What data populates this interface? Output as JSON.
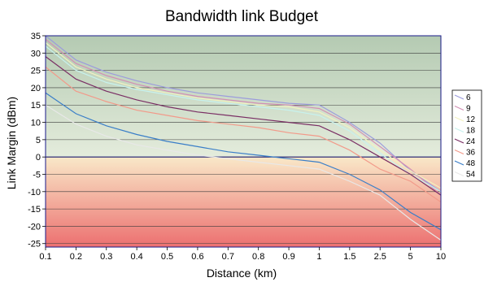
{
  "chart_data": {
    "type": "line",
    "title": "Bandwidth link Budget",
    "xlabel": "Distance (km)",
    "ylabel": "Link Margin (dBm)",
    "x": [
      "0.1",
      "0.2",
      "0.3",
      "0.4",
      "0.5",
      "0.6",
      "0.7",
      "0.8",
      "0.9",
      "1",
      "1.5",
      "2.5",
      "5",
      "10"
    ],
    "ylim": [
      -26,
      35
    ],
    "yticks": [
      35,
      30,
      25,
      20,
      15,
      10,
      5,
      0,
      -5,
      -10,
      -15,
      -20,
      -25
    ],
    "grid": true,
    "legend_position": "right",
    "zones": {
      "above_zero": "#b9cdb7",
      "below_zero": "#ee7b7b"
    },
    "series": [
      {
        "name": "6",
        "color": "#9c9cdc",
        "values": [
          35,
          28,
          24.5,
          22,
          20,
          18.5,
          17.5,
          16.5,
          15.5,
          15,
          10,
          4,
          -4,
          -10
        ]
      },
      {
        "name": "9",
        "color": "#d28fb4",
        "values": [
          34,
          27,
          23.5,
          21,
          19,
          17.5,
          16.5,
          15.5,
          15,
          14,
          9.5,
          3,
          -3.5,
          -11
        ]
      },
      {
        "name": "12",
        "color": "#f2f2c0",
        "values": [
          33,
          26,
          22.5,
          20,
          18.5,
          17,
          16,
          15,
          14.5,
          13,
          8.5,
          2,
          -4,
          -9
        ]
      },
      {
        "name": "18",
        "color": "#c7f2ee",
        "values": [
          32,
          25,
          21.5,
          19.5,
          18,
          16.5,
          15.5,
          14.5,
          13.5,
          12,
          7.5,
          1,
          -5,
          -10
        ]
      },
      {
        "name": "24",
        "color": "#7a2e64",
        "values": [
          29,
          22.5,
          19,
          16.5,
          14.5,
          13,
          12,
          11,
          10,
          9,
          5,
          0,
          -5,
          -11
        ]
      },
      {
        "name": "36",
        "color": "#f29a8a",
        "values": [
          26,
          19,
          16,
          13.5,
          12,
          10.5,
          9.5,
          8.5,
          7,
          6,
          2,
          -3.5,
          -7,
          -13
        ]
      },
      {
        "name": "48",
        "color": "#3a7ec8",
        "values": [
          18.5,
          12.5,
          9,
          6.5,
          4.5,
          3,
          1.5,
          0.5,
          -0.5,
          -1.5,
          -5,
          -9.5,
          -16,
          -21
        ]
      },
      {
        "name": "54",
        "color": "#e8e8e8",
        "values": [
          15,
          9.5,
          6,
          3.5,
          2,
          0.5,
          -0.5,
          -1.5,
          -2.5,
          -3.5,
          -7,
          -11,
          -18,
          -24
        ]
      }
    ]
  }
}
